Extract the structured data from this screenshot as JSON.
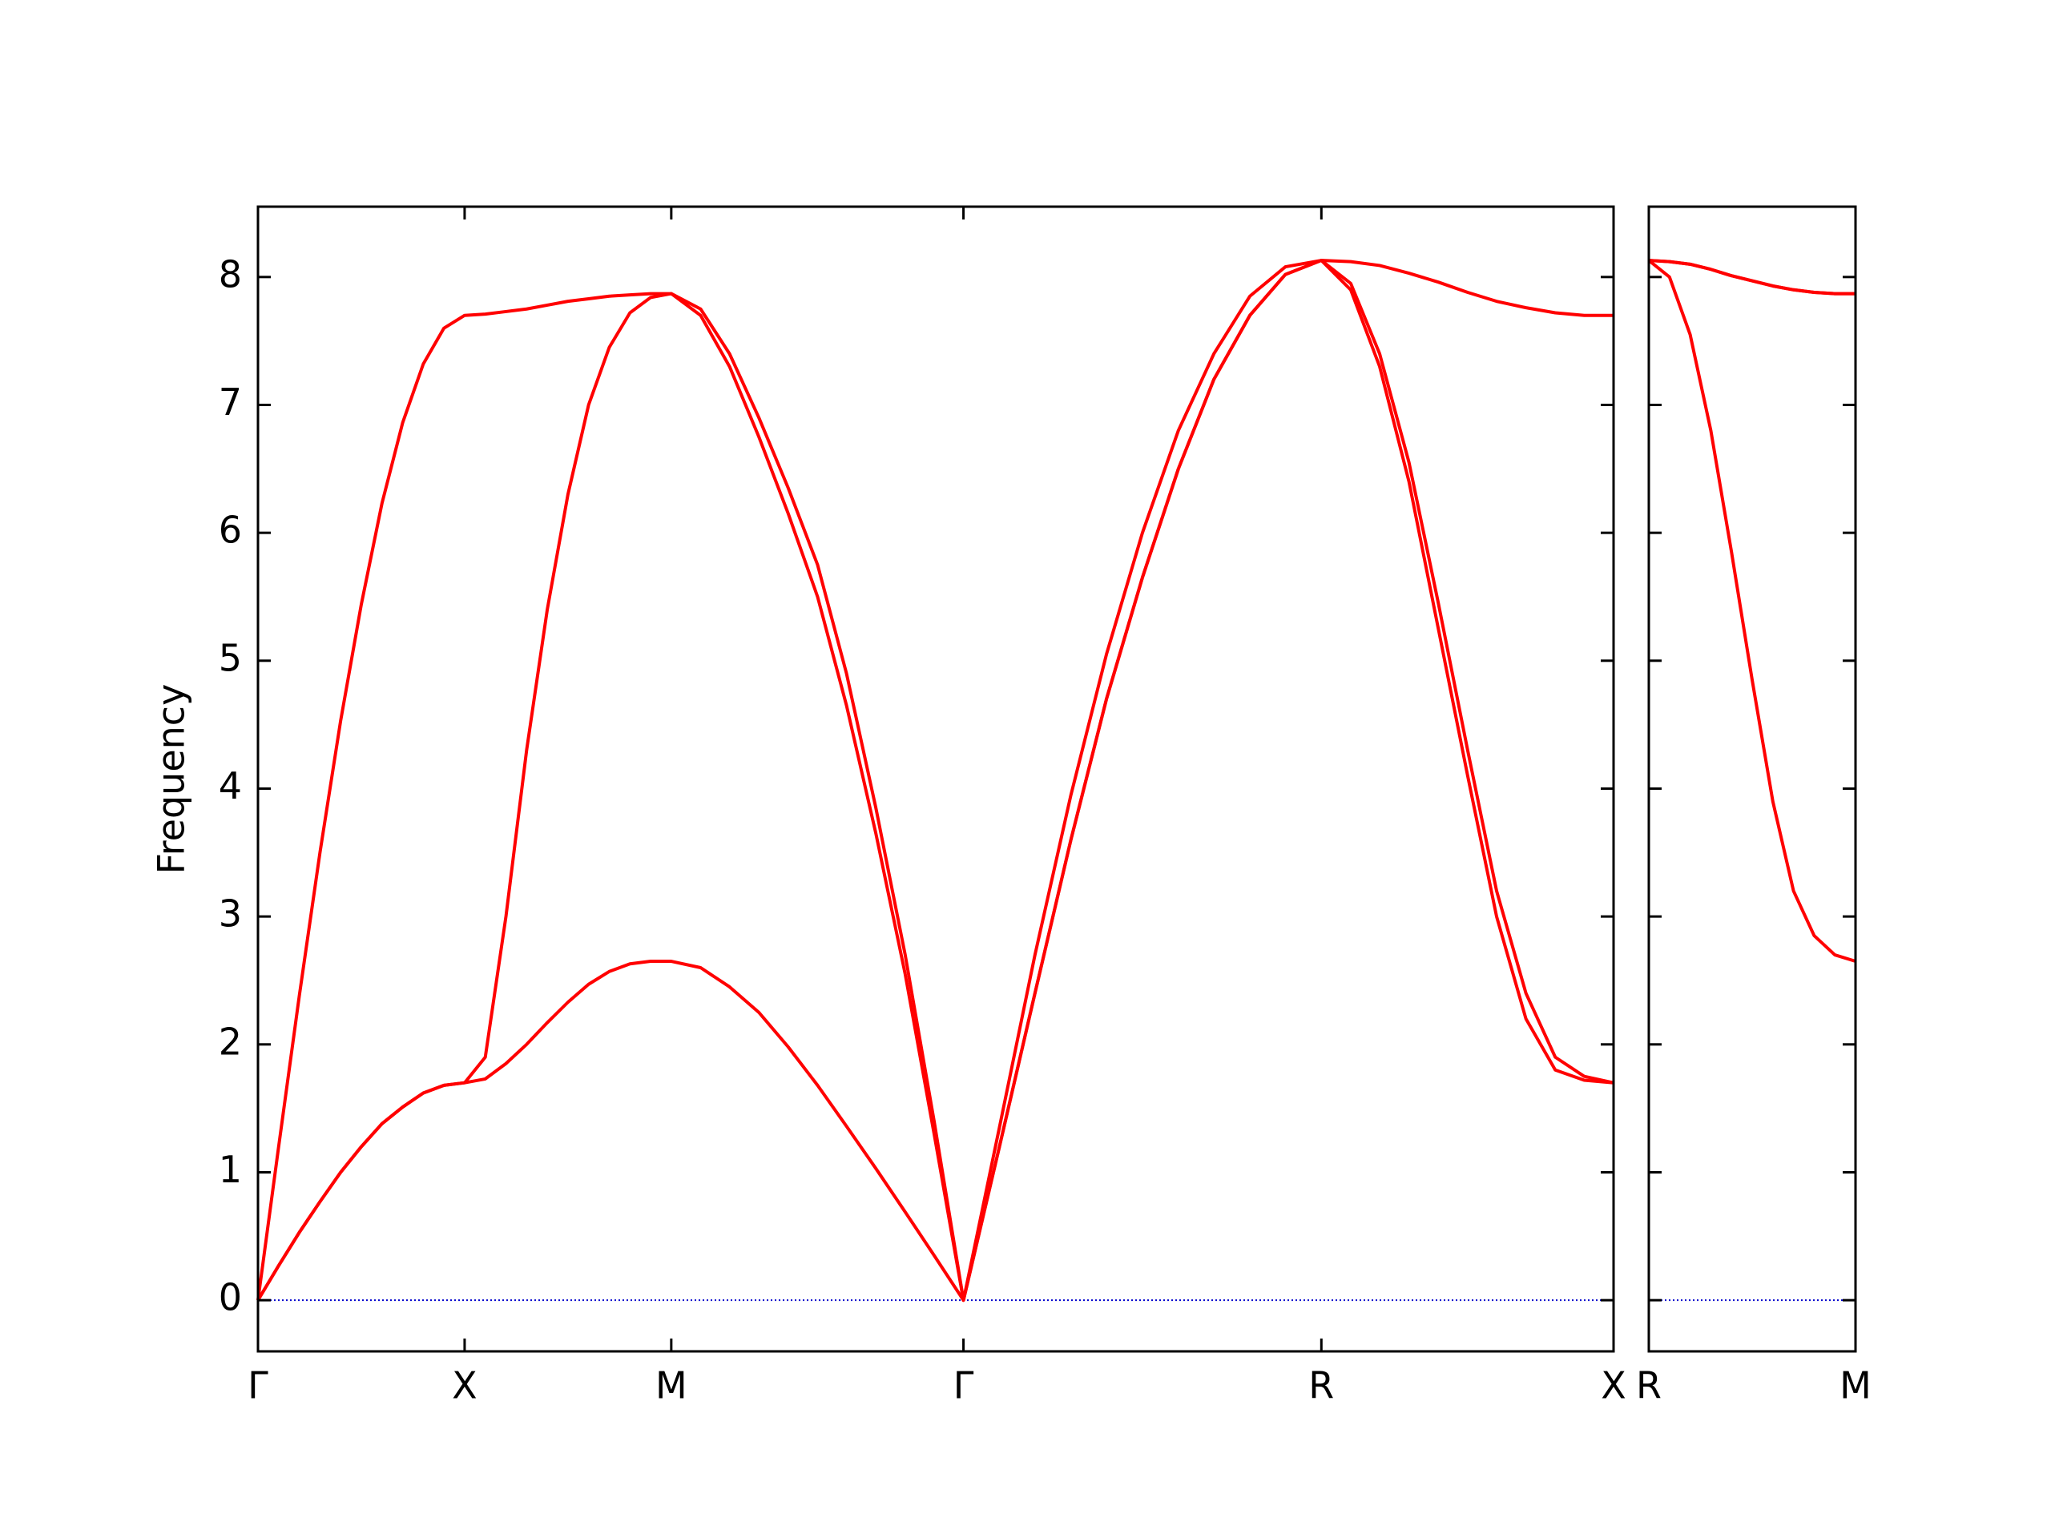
{
  "chart_data": [
    {
      "type": "line",
      "ylabel": "Frequency",
      "x": [
        0,
        0.05,
        0.1,
        0.15,
        0.2,
        0.25,
        0.3,
        0.35,
        0.4,
        0.45,
        0.5,
        0.55,
        0.6,
        0.65,
        0.7,
        0.75,
        0.8,
        0.85,
        0.9,
        0.95,
        1.0,
        1.071,
        1.141,
        1.212,
        1.283,
        1.354,
        1.424,
        1.495,
        1.566,
        1.636,
        1.707,
        1.794,
        1.88,
        1.967,
        2.053,
        2.14,
        2.227,
        2.313,
        2.4,
        2.486,
        2.573,
        2.644,
        2.714,
        2.785,
        2.856,
        2.927,
        2.997,
        3.068,
        3.139,
        3.209,
        3.28
      ],
      "series": [
        {
          "color": "#ff0000",
          "values": [
            0,
            0.27,
            0.53,
            0.77,
            1.0,
            1.2,
            1.38,
            1.51,
            1.62,
            1.68,
            1.7,
            1.73,
            1.85,
            2.0,
            2.17,
            2.33,
            2.47,
            2.57,
            2.63,
            2.65,
            2.65,
            2.6,
            2.45,
            2.25,
            1.98,
            1.68,
            1.36,
            1.03,
            0.69,
            0.35,
            0,
            1.2,
            2.4,
            3.6,
            4.7,
            5.65,
            6.5,
            7.2,
            7.7,
            8.02,
            8.13,
            7.9,
            7.3,
            6.4,
            5.25,
            4.1,
            3.0,
            2.2,
            1.8,
            1.72,
            1.7
          ]
        },
        {
          "color": "#ff0000",
          "values": [
            0,
            0.27,
            0.53,
            0.77,
            1.0,
            1.2,
            1.38,
            1.51,
            1.62,
            1.68,
            1.7,
            1.9,
            3.0,
            4.3,
            5.4,
            6.3,
            7.0,
            7.45,
            7.72,
            7.84,
            7.87,
            7.7,
            7.3,
            6.75,
            6.15,
            5.5,
            4.65,
            3.65,
            2.55,
            1.3,
            0,
            1.2,
            2.4,
            3.6,
            4.7,
            5.65,
            6.5,
            7.2,
            7.7,
            8.02,
            8.13,
            7.95,
            7.4,
            6.55,
            5.45,
            4.3,
            3.2,
            2.4,
            1.9,
            1.75,
            1.7
          ]
        },
        {
          "color": "#ff0000",
          "values": [
            0,
            1.2,
            2.38,
            3.5,
            4.53,
            5.44,
            6.23,
            6.86,
            7.32,
            7.6,
            7.7,
            7.71,
            7.73,
            7.75,
            7.78,
            7.81,
            7.83,
            7.85,
            7.86,
            7.87,
            7.87,
            7.75,
            7.4,
            6.9,
            6.35,
            5.75,
            4.9,
            3.85,
            2.7,
            1.4,
            0,
            1.35,
            2.7,
            3.95,
            5.05,
            6.0,
            6.8,
            7.4,
            7.85,
            8.08,
            8.13,
            8.12,
            8.09,
            8.03,
            7.96,
            7.88,
            7.81,
            7.76,
            7.72,
            7.7,
            7.7
          ]
        }
      ],
      "xlim": [
        0,
        3.28
      ],
      "xticks": [
        {
          "value": 0,
          "label": "Γ"
        },
        {
          "value": 0.5,
          "label": "X"
        },
        {
          "value": 1.0,
          "label": "M"
        },
        {
          "value": 1.707,
          "label": "Γ"
        },
        {
          "value": 2.573,
          "label": "R"
        },
        {
          "value": 3.28,
          "label": "X"
        }
      ],
      "ylim": [
        -0.4,
        8.55
      ],
      "yticks": [
        0,
        1,
        2,
        3,
        4,
        5,
        6,
        7,
        8
      ],
      "ytick_labels": true,
      "zero_line": true,
      "zero_line_color": "#0000cc"
    },
    {
      "type": "line",
      "x": [
        3.28,
        3.33,
        3.38,
        3.43,
        3.48,
        3.53,
        3.58,
        3.63,
        3.68,
        3.73,
        3.78
      ],
      "series": [
        {
          "color": "#ff0000",
          "values": [
            8.13,
            8.0,
            7.55,
            6.8,
            5.85,
            4.85,
            3.9,
            3.2,
            2.85,
            2.7,
            2.65
          ]
        },
        {
          "color": "#ff0000",
          "values": [
            8.13,
            8.12,
            8.1,
            8.06,
            8.01,
            7.97,
            7.93,
            7.9,
            7.88,
            7.87,
            7.87
          ]
        },
        {
          "color": "#ff0000",
          "values": [
            8.13,
            8.12,
            8.1,
            8.06,
            8.01,
            7.97,
            7.93,
            7.9,
            7.88,
            7.87,
            7.87
          ]
        }
      ],
      "xlim": [
        3.28,
        3.78
      ],
      "xticks": [
        {
          "value": 3.28,
          "label": "R"
        },
        {
          "value": 3.78,
          "label": "M"
        }
      ],
      "ylim": [
        -0.4,
        8.55
      ],
      "yticks": [
        0,
        1,
        2,
        3,
        4,
        5,
        6,
        7,
        8
      ],
      "ytick_labels": false,
      "zero_line": true,
      "zero_line_color": "#0000cc"
    }
  ]
}
